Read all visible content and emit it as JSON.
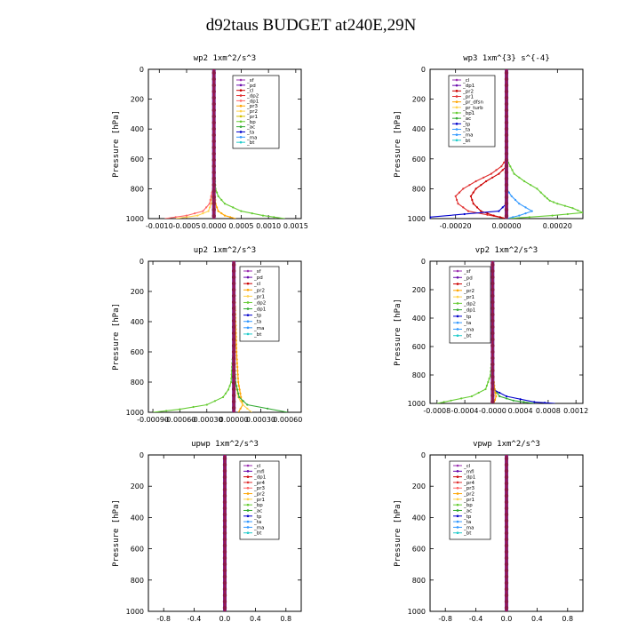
{
  "title": "d92taus  BUDGET at240E,29N",
  "chart_data": [
    {
      "type": "line",
      "subtitle": "wp2   1xm^2/s^3",
      "ylabel": "Pressure [hPa]",
      "xlim": [
        -0.0012,
        0.0016
      ],
      "ylim": [
        1000,
        0
      ],
      "xticks": [
        -0.001,
        -0.0005,
        0.0,
        0.0005,
        0.001,
        0.0015
      ],
      "xtick_labels": [
        "-0.0010",
        "-0.0005",
        "0.0000",
        "0.0005",
        "0.0010",
        "0.0015"
      ],
      "yticks": [
        0,
        200,
        400,
        600,
        800,
        1000
      ],
      "legend": [
        "_sf",
        "_pd",
        "_cl",
        "_dp2",
        "_dp1",
        "_pr3",
        "_pr2",
        "_pr1",
        "_bp",
        "_ac",
        "_ta",
        "_ma",
        "_bt"
      ],
      "colors": [
        "#9b30b0",
        "#6a0dad",
        "#cc0000",
        "#e03030",
        "#ff6666",
        "#ffa500",
        "#ffd24d",
        "#d4c000",
        "#66cc33",
        "#33aa33",
        "#0000cc",
        "#3399ff",
        "#22cccc"
      ],
      "series": [
        {
          "name": "_pr2",
          "pressure": [
            0,
            400,
            600,
            800,
            900,
            950,
            980,
            1000
          ],
          "values": [
            0,
            0,
            0,
            -1e-05,
            -5e-05,
            -0.0001,
            -0.0003,
            -0.0007
          ]
        },
        {
          "name": "_pr3",
          "pressure": [
            0,
            400,
            600,
            800,
            900,
            950,
            980,
            1000
          ],
          "values": [
            0,
            0,
            0,
            1e-05,
            3e-05,
            8e-05,
            0.0002,
            0.0004
          ]
        },
        {
          "name": "_bp",
          "pressure": [
            0,
            400,
            600,
            800,
            850,
            900,
            950,
            980,
            1000
          ],
          "values": [
            0,
            0,
            0,
            3e-05,
            8e-05,
            0.0002,
            0.0005,
            0.0009,
            0.0013
          ]
        },
        {
          "name": "_dp1",
          "pressure": [
            0,
            400,
            600,
            800,
            900,
            950,
            980,
            1000
          ],
          "values": [
            0,
            0,
            0,
            -2e-05,
            -8e-05,
            -0.0002,
            -0.0005,
            -0.0009
          ]
        },
        {
          "name": "_sf",
          "pressure": [
            0,
            500,
            1000
          ],
          "values": [
            0,
            0,
            0
          ]
        }
      ]
    },
    {
      "type": "line",
      "subtitle": "wp3   1xm^{3} s^{-4}",
      "ylabel": "Pressure [hPa]",
      "xlim": [
        -0.0003,
        0.0003
      ],
      "ylim": [
        1000,
        0
      ],
      "xticks": [
        -0.0002,
        0.0,
        0.0002
      ],
      "xtick_labels": [
        "-0.00020",
        "0.00000",
        "0.00020"
      ],
      "yticks": [
        0,
        200,
        400,
        600,
        800,
        1000
      ],
      "legend": [
        "_cl",
        "_dp1",
        "_pr2",
        "_pr1",
        "_pr_dfsn",
        "_pr_turb",
        "_bp1",
        "_ac",
        "_tp",
        "_ta",
        "_ma",
        "_bt"
      ],
      "colors": [
        "#9b30b0",
        "#6a0dad",
        "#cc0000",
        "#e03030",
        "#ffa500",
        "#ffd24d",
        "#66cc33",
        "#33aa33",
        "#0000cc",
        "#3399ff",
        "#3399ff",
        "#22cccc"
      ],
      "series": [
        {
          "name": "_bp1",
          "pressure": [
            0,
            300,
            600,
            700,
            750,
            800,
            850,
            880,
            900,
            930,
            960,
            980,
            1000
          ],
          "values": [
            0,
            0,
            0,
            3e-05,
            7e-05,
            0.00012,
            0.00015,
            0.00017,
            0.0002,
            0.00026,
            0.0003,
            0.00018,
            0
          ]
        },
        {
          "name": "_pr1",
          "pressure": [
            0,
            600,
            650,
            700,
            750,
            800,
            850,
            900,
            950,
            1000
          ],
          "values": [
            0,
            0,
            -2e-05,
            -6e-05,
            -0.00012,
            -0.00017,
            -0.0002,
            -0.00019,
            -0.00015,
            0
          ]
        },
        {
          "name": "_pr2",
          "pressure": [
            0,
            650,
            700,
            750,
            800,
            850,
            900,
            950,
            980,
            1000
          ],
          "values": [
            0,
            0,
            -3e-05,
            -8e-05,
            -0.00012,
            -0.00014,
            -0.00013,
            -0.0001,
            -5e-05,
            0
          ]
        },
        {
          "name": "_ta",
          "pressure": [
            0,
            800,
            850,
            900,
            950,
            980,
            1000
          ],
          "values": [
            0,
            0,
            2e-05,
            5e-05,
            0.0001,
            5e-05,
            0
          ]
        },
        {
          "name": "_tp",
          "pressure": [
            0,
            900,
            950,
            990,
            1000
          ],
          "values": [
            0,
            0,
            -3e-05,
            -0.0003,
            -0.0003
          ]
        },
        {
          "name": "_cl",
          "pressure": [
            0,
            500,
            1000
          ],
          "values": [
            0,
            0,
            0
          ]
        }
      ]
    },
    {
      "type": "line",
      "subtitle": "up2   1xm^2/s^3",
      "ylabel": "Pressure [hPa]",
      "xlim": [
        -0.00095,
        0.00075
      ],
      "ylim": [
        1000,
        0
      ],
      "xticks": [
        -0.0009,
        -0.0006,
        -0.0003,
        0.0,
        0.0003,
        0.0006
      ],
      "xtick_labels": [
        "-0.00090",
        "-0.00060",
        "-0.00030",
        "0.00000",
        "0.00030",
        "0.00060"
      ],
      "yticks": [
        0,
        200,
        400,
        600,
        800,
        1000
      ],
      "legend": [
        "_sf",
        "_pd",
        "_cl",
        "_pr2",
        "_pr1",
        "_dp2",
        "_dp1",
        "_tp",
        "_ta",
        "_ma",
        "_bt"
      ],
      "colors": [
        "#9b30b0",
        "#6a0dad",
        "#cc0000",
        "#ffa500",
        "#ffd24d",
        "#66cc33",
        "#33aa33",
        "#0000cc",
        "#3399ff",
        "#3399ff",
        "#22cccc"
      ],
      "series": [
        {
          "name": "_dp2",
          "pressure": [
            0,
            400,
            600,
            800,
            850,
            900,
            950,
            980,
            1000
          ],
          "values": [
            0,
            0,
            -1e-05,
            -3e-05,
            -6e-05,
            -0.00012,
            -0.0003,
            -0.0006,
            -0.0009
          ]
        },
        {
          "name": "_pr2",
          "pressure": [
            0,
            200,
            400,
            600,
            800,
            900,
            950,
            1000
          ],
          "values": [
            0,
            1e-05,
            2e-05,
            3e-05,
            5e-05,
            8e-05,
            0.0001,
            5e-05
          ]
        },
        {
          "name": "_pr1",
          "pressure": [
            0,
            500,
            800,
            900,
            950,
            1000
          ],
          "values": [
            0,
            0,
            2e-05,
            5e-05,
            0.0001,
            0.0002
          ]
        },
        {
          "name": "_dp1",
          "pressure": [
            0,
            600,
            800,
            900,
            950,
            1000
          ],
          "values": [
            0,
            0,
            2e-05,
            6e-05,
            0.00015,
            0.0006
          ]
        },
        {
          "name": "_sf",
          "pressure": [
            0,
            500,
            1000
          ],
          "values": [
            0,
            0,
            0
          ]
        }
      ]
    },
    {
      "type": "line",
      "subtitle": "vp2   1xm^2/s^3",
      "ylabel": "Pressure [hPa]",
      "xlim": [
        -0.0009,
        0.0013
      ],
      "ylim": [
        1000,
        0
      ],
      "xticks": [
        -0.0008,
        -0.0004,
        0.0,
        0.0004,
        0.0008,
        0.0012
      ],
      "xtick_labels": [
        "-0.0008",
        "-0.0004",
        "-0.0000",
        "0.0004",
        "0.0008",
        "0.0012"
      ],
      "yticks": [
        0,
        200,
        400,
        600,
        800,
        1000
      ],
      "legend": [
        "_sf",
        "_pd",
        "_cl",
        "_pr2",
        "_pr1",
        "_dp2",
        "_dp1",
        "_tp",
        "_ta",
        "_ma",
        "_bt"
      ],
      "colors": [
        "#9b30b0",
        "#6a0dad",
        "#cc0000",
        "#ffa500",
        "#ffd24d",
        "#66cc33",
        "#33aa33",
        "#0000cc",
        "#3399ff",
        "#3399ff",
        "#22cccc"
      ],
      "series": [
        {
          "name": "_dp2",
          "pressure": [
            0,
            600,
            800,
            900,
            950,
            980,
            1000
          ],
          "values": [
            0,
            0,
            -3e-05,
            -0.0001,
            -0.0003,
            -0.0006,
            -0.0008
          ]
        },
        {
          "name": "_dp1",
          "pressure": [
            0,
            800,
            900,
            950,
            980,
            1000
          ],
          "values": [
            0,
            0,
            3e-05,
            0.0001,
            0.0003,
            0.0006
          ]
        },
        {
          "name": "_tp",
          "pressure": [
            0,
            900,
            950,
            990,
            1000
          ],
          "values": [
            0,
            0,
            0.0002,
            0.0006,
            0.0009
          ]
        },
        {
          "name": "_pr2",
          "pressure": [
            0,
            800,
            900,
            950,
            1000
          ],
          "values": [
            0,
            1e-05,
            3e-05,
            5e-05,
            2e-05
          ]
        },
        {
          "name": "_sf",
          "pressure": [
            0,
            500,
            1000
          ],
          "values": [
            0,
            0,
            0
          ]
        }
      ]
    },
    {
      "type": "line",
      "subtitle": "upwp   1xm^2/s^3",
      "ylabel": "Pressure [hPa]",
      "xlim": [
        -1,
        1
      ],
      "ylim": [
        1000,
        0
      ],
      "xticks": [
        -0.8,
        -0.4,
        0.0,
        0.4,
        0.8
      ],
      "xtick_labels": [
        "-0.8",
        "-0.4",
        "0.0",
        "0.4",
        "0.8"
      ],
      "yticks": [
        0,
        200,
        400,
        600,
        800,
        1000
      ],
      "legend": [
        "_cl",
        "_mfl",
        "_dp1",
        "_pr4",
        "_pr3",
        "_pr2",
        "_pr1",
        "_bp",
        "_ac",
        "_tp",
        "_ta",
        "_ma",
        "_bt"
      ],
      "colors": [
        "#9b30b0",
        "#6a0dad",
        "#cc0000",
        "#e03030",
        "#ff6666",
        "#ffa500",
        "#ffd24d",
        "#66cc33",
        "#33aa33",
        "#0000cc",
        "#3399ff",
        "#3399ff",
        "#22cccc"
      ],
      "series": [
        {
          "name": "_cl",
          "pressure": [
            0,
            500,
            1000
          ],
          "values": [
            0,
            0,
            0
          ]
        }
      ]
    },
    {
      "type": "line",
      "subtitle": "vpwp   1xm^2/s^3",
      "ylabel": "Pressure [hPa]",
      "xlim": [
        -1,
        1
      ],
      "ylim": [
        1000,
        0
      ],
      "xticks": [
        -0.8,
        -0.4,
        0.0,
        0.4,
        0.8
      ],
      "xtick_labels": [
        "-0.8",
        "-0.4",
        "0.0",
        "0.4",
        "0.8"
      ],
      "yticks": [
        0,
        200,
        400,
        600,
        800,
        1000
      ],
      "legend": [
        "_cl",
        "_mfl",
        "_dp1",
        "_pr4",
        "_pr3",
        "_pr2",
        "_pr1",
        "_bp",
        "_ac",
        "_tp",
        "_ta",
        "_ma",
        "_bt"
      ],
      "colors": [
        "#9b30b0",
        "#6a0dad",
        "#cc0000",
        "#e03030",
        "#ff6666",
        "#ffa500",
        "#ffd24d",
        "#66cc33",
        "#33aa33",
        "#0000cc",
        "#3399ff",
        "#3399ff",
        "#22cccc"
      ],
      "series": [
        {
          "name": "_cl",
          "pressure": [
            0,
            500,
            1000
          ],
          "values": [
            0,
            0,
            0
          ]
        }
      ]
    }
  ]
}
